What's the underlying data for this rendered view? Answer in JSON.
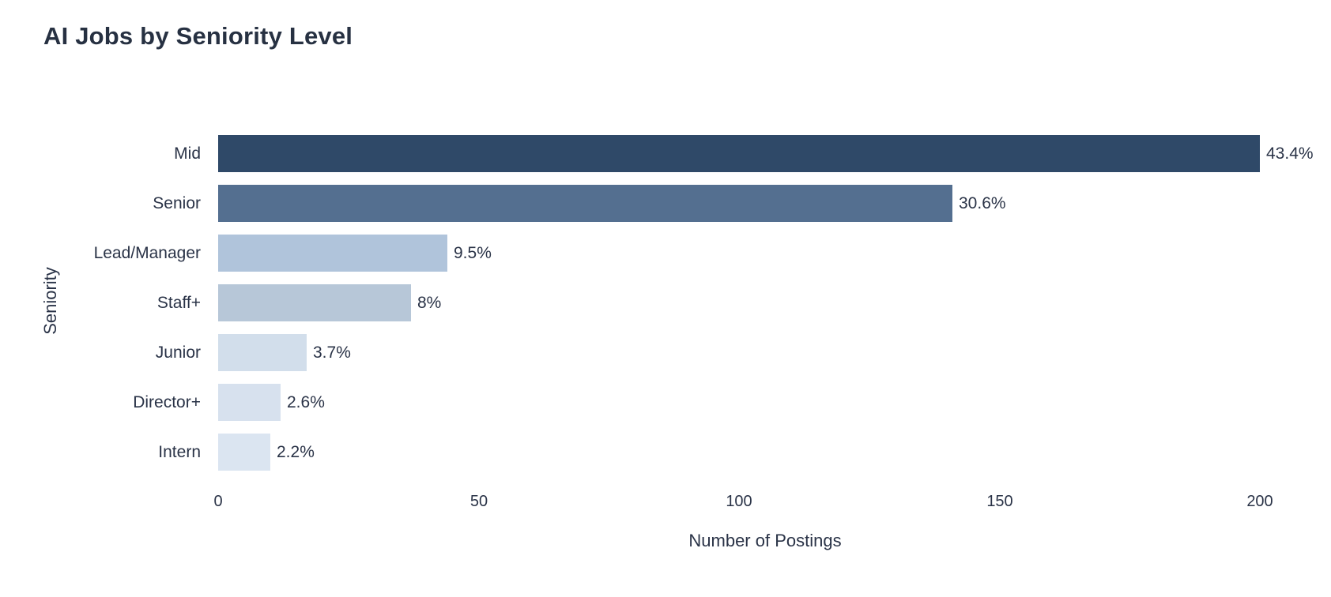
{
  "chart_data": {
    "type": "bar",
    "orientation": "horizontal",
    "title": "AI Jobs by Seniority Level",
    "xlabel": "Number of Postings",
    "ylabel": "Seniority",
    "categories": [
      "Mid",
      "Senior",
      "Lead/Manager",
      "Staff+",
      "Junior",
      "Director+",
      "Intern"
    ],
    "values": [
      200,
      141,
      44,
      37,
      17,
      12,
      10
    ],
    "bar_labels": [
      "43.4%",
      "30.6%",
      "9.5%",
      "8%",
      "3.7%",
      "2.6%",
      "2.2%"
    ],
    "bar_colors": [
      "#2f4968",
      "#546f90",
      "#b0c4db",
      "#b7c7d8",
      "#d2deeb",
      "#d7e1ee",
      "#dbe5f1"
    ],
    "xlim": [
      0,
      210
    ],
    "xticks": [
      0,
      50,
      100,
      150,
      200
    ],
    "grid": false,
    "legend_position": "none",
    "colors": {
      "text": "#2a3347",
      "title": "#273142",
      "background": "#ffffff"
    }
  }
}
